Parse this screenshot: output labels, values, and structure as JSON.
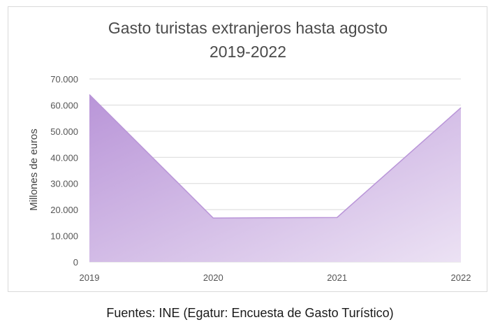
{
  "chart_data": {
    "type": "area",
    "title_lines": [
      "Gasto turistas extranjeros hasta agosto",
      "2019-2022"
    ],
    "ylabel": "Millones de euros",
    "xlabel": "",
    "categories": [
      "2019",
      "2020",
      "2021",
      "2022"
    ],
    "series": [
      {
        "values": [
          64000,
          16800,
          17000,
          59000
        ]
      }
    ],
    "ylim": [
      0,
      70000
    ],
    "yticks": [
      0,
      10000,
      20000,
      30000,
      40000,
      50000,
      60000,
      70000
    ],
    "ytick_labels": [
      "0",
      "10.000",
      "20.000",
      "30.000",
      "40.000",
      "50.000",
      "60.000",
      "70.000"
    ],
    "grid": true,
    "colors": {
      "fill_start": "#b995d8",
      "fill_end": "#ece2f4",
      "grid": "#d9d9d9"
    }
  },
  "source_note": "Fuentes: INE (Egatur: Encuesta de Gasto Turístico)"
}
